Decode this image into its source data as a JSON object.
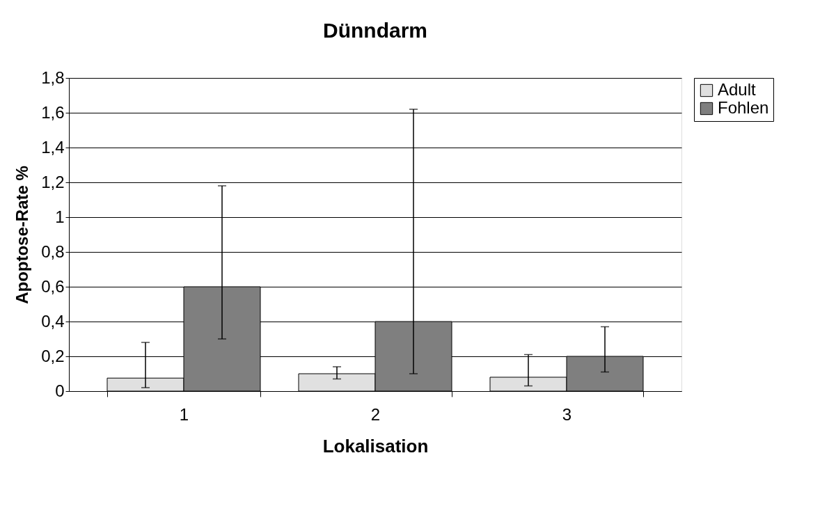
{
  "chart_data": {
    "type": "bar",
    "title": "Dünndarm",
    "xlabel": "Lokalisation",
    "ylabel": "Apoptose-Rate %",
    "categories": [
      "1",
      "2",
      "3"
    ],
    "series": [
      {
        "name": "Adult",
        "color": "#e0e0e0",
        "values": [
          0.075,
          0.1,
          0.08
        ],
        "errors": [
          [
            0.02,
            0.28
          ],
          [
            0.07,
            0.14
          ],
          [
            0.03,
            0.21
          ]
        ]
      },
      {
        "name": "Fohlen",
        "color": "#7f7f7f",
        "values": [
          0.6,
          0.4,
          0.2
        ],
        "errors": [
          [
            0.3,
            1.18
          ],
          [
            0.1,
            1.62
          ],
          [
            0.11,
            0.37
          ]
        ]
      }
    ],
    "ylim": [
      0,
      1.8
    ],
    "yticks": [
      0,
      {
        "value": 0.2,
        "label": "0,2"
      },
      {
        "value": 0.4,
        "label": "0,4"
      },
      {
        "value": 0.6,
        "label": "0,6"
      },
      {
        "value": 0.8,
        "label": "0,8"
      },
      1,
      {
        "value": 1.2,
        "label": "1,2"
      },
      {
        "value": 1.4,
        "label": "1,4"
      },
      {
        "value": 1.6,
        "label": "1,6"
      },
      {
        "value": 1.8,
        "label": "1,8"
      }
    ],
    "grid": "y",
    "legend": "right"
  }
}
